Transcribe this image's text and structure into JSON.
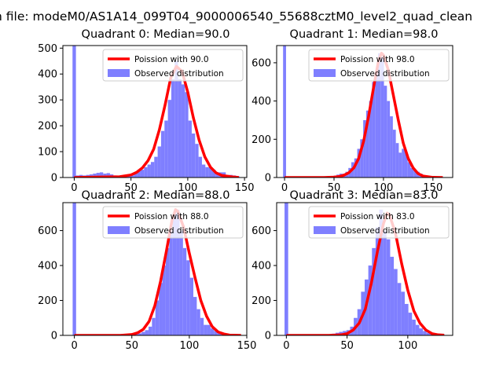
{
  "figure": {
    "suptitle": "n file: modeM0/AS1A14_099T04_9000006540_55688cztM0_level2_quad_clean"
  },
  "colors": {
    "hist": "#7f7fff",
    "fit": "#ff0000",
    "axis": "#000000"
  },
  "legend": {
    "fit_prefix": "Poission with ",
    "observed_label": "Observed distribution"
  },
  "chart_data": [
    {
      "type": "bar+line",
      "title": "Quadrant 0: Median=90.0",
      "median": 90.0,
      "xlim": [
        -10,
        152
      ],
      "ylim": [
        0,
        510
      ],
      "xticks": [
        0,
        50,
        100,
        150
      ],
      "yticks": [
        0,
        100,
        200,
        300,
        400,
        500
      ],
      "bin_width": 3,
      "spike": {
        "x": 0,
        "value": 510
      },
      "hist_x": [
        3,
        6,
        9,
        12,
        15,
        18,
        21,
        24,
        27,
        30,
        33,
        36,
        39,
        42,
        45,
        48,
        51,
        54,
        57,
        60,
        63,
        66,
        69,
        72,
        75,
        78,
        81,
        84,
        87,
        90,
        93,
        96,
        99,
        102,
        105,
        108,
        111,
        114,
        117,
        120,
        123,
        126,
        129,
        132,
        135,
        138,
        141,
        144
      ],
      "hist_y": [
        8,
        10,
        8,
        10,
        12,
        15,
        18,
        20,
        15,
        17,
        12,
        8,
        5,
        5,
        8,
        5,
        8,
        20,
        30,
        30,
        40,
        50,
        60,
        80,
        120,
        180,
        220,
        300,
        380,
        450,
        380,
        360,
        330,
        220,
        170,
        130,
        80,
        50,
        40,
        40,
        30,
        20,
        20,
        20,
        10,
        10,
        8,
        5
      ],
      "fit_x": [
        0,
        40,
        50,
        55,
        60,
        65,
        70,
        75,
        80,
        85,
        90,
        95,
        100,
        105,
        110,
        115,
        120,
        125,
        130,
        140,
        145
      ],
      "fit_y": [
        0,
        3,
        10,
        20,
        37,
        65,
        110,
        185,
        280,
        385,
        430,
        410,
        330,
        230,
        145,
        80,
        40,
        18,
        8,
        2,
        0
      ]
    },
    {
      "type": "bar+line",
      "title": "Quadrant 1: Median=98.0",
      "median": 98.0,
      "xlim": [
        -8,
        170
      ],
      "ylim": [
        0,
        690
      ],
      "xticks": [
        0,
        50,
        100,
        150
      ],
      "yticks": [
        0,
        200,
        400,
        600
      ],
      "bin_width": 3,
      "spike": {
        "x": 0,
        "value": 690
      },
      "hist_x": [
        45,
        48,
        51,
        54,
        57,
        60,
        63,
        66,
        69,
        72,
        75,
        78,
        81,
        84,
        87,
        90,
        93,
        96,
        99,
        102,
        105,
        108,
        111,
        114,
        117,
        120,
        123,
        126,
        129,
        132,
        135,
        138,
        141,
        144,
        147,
        150,
        153,
        156,
        159
      ],
      "hist_y": [
        5,
        8,
        10,
        15,
        20,
        20,
        30,
        50,
        80,
        100,
        150,
        200,
        300,
        350,
        400,
        500,
        550,
        650,
        630,
        480,
        400,
        320,
        250,
        180,
        130,
        150,
        130,
        80,
        50,
        40,
        30,
        20,
        10,
        8,
        5,
        3,
        2,
        2,
        1
      ],
      "fit_x": [
        0,
        40,
        50,
        55,
        60,
        65,
        70,
        75,
        80,
        85,
        90,
        95,
        98,
        100,
        105,
        110,
        115,
        120,
        125,
        130,
        135,
        140,
        150,
        160
      ],
      "fit_y": [
        0,
        0,
        2,
        5,
        12,
        25,
        50,
        100,
        190,
        320,
        470,
        610,
        650,
        640,
        560,
        430,
        300,
        180,
        100,
        50,
        20,
        8,
        1,
        0
      ]
    },
    {
      "type": "bar+line",
      "title": "Quadrant 2: Median=88.0",
      "median": 88.0,
      "xlim": [
        -10,
        150
      ],
      "ylim": [
        0,
        760
      ],
      "xticks": [
        0,
        50,
        100,
        150
      ],
      "yticks": [
        0,
        200,
        400,
        600
      ],
      "bin_width": 3,
      "spike": {
        "x": 0,
        "value": 760
      },
      "hist_x": [
        48,
        51,
        54,
        57,
        60,
        63,
        66,
        69,
        72,
        75,
        78,
        81,
        84,
        87,
        90,
        93,
        96,
        99,
        102,
        105,
        108,
        111,
        114,
        117,
        120,
        123,
        126,
        129,
        132,
        135,
        138,
        141
      ],
      "hist_y": [
        5,
        5,
        8,
        12,
        20,
        30,
        50,
        100,
        200,
        300,
        400,
        500,
        600,
        700,
        720,
        600,
        500,
        430,
        330,
        220,
        150,
        100,
        60,
        60,
        40,
        25,
        20,
        15,
        10,
        8,
        5,
        3
      ],
      "fit_x": [
        0,
        40,
        50,
        55,
        60,
        65,
        70,
        75,
        80,
        85,
        88,
        90,
        95,
        100,
        105,
        110,
        115,
        120,
        125,
        130,
        135,
        145
      ],
      "fit_y": [
        0,
        0,
        5,
        15,
        35,
        80,
        170,
        310,
        480,
        660,
        720,
        710,
        620,
        470,
        330,
        200,
        110,
        50,
        20,
        8,
        2,
        0
      ]
    },
    {
      "type": "bar+line",
      "title": "Quadrant 3: Median=83.0",
      "median": 83.0,
      "xlim": [
        -8,
        137
      ],
      "ylim": [
        0,
        760
      ],
      "xticks": [
        0,
        50,
        100
      ],
      "yticks": [
        0,
        200,
        400,
        600
      ],
      "bin_width": 3,
      "spike": {
        "x": 0,
        "value": 760
      },
      "hist_x": [
        39,
        42,
        45,
        48,
        51,
        54,
        57,
        60,
        63,
        66,
        69,
        72,
        75,
        78,
        81,
        84,
        87,
        90,
        93,
        96,
        99,
        102,
        105,
        108,
        111,
        114,
        117,
        120,
        123,
        126,
        129
      ],
      "hist_y": [
        10,
        15,
        20,
        25,
        30,
        50,
        100,
        150,
        250,
        320,
        400,
        500,
        620,
        720,
        600,
        550,
        450,
        380,
        300,
        250,
        180,
        130,
        90,
        60,
        40,
        25,
        15,
        10,
        8,
        5,
        3
      ],
      "fit_x": [
        0,
        35,
        45,
        50,
        55,
        60,
        65,
        70,
        75,
        80,
        83,
        85,
        90,
        95,
        100,
        105,
        110,
        115,
        120,
        125,
        130
      ],
      "fit_y": [
        0,
        0,
        3,
        10,
        30,
        70,
        150,
        300,
        480,
        640,
        700,
        690,
        580,
        410,
        260,
        140,
        70,
        30,
        10,
        3,
        1
      ]
    }
  ]
}
